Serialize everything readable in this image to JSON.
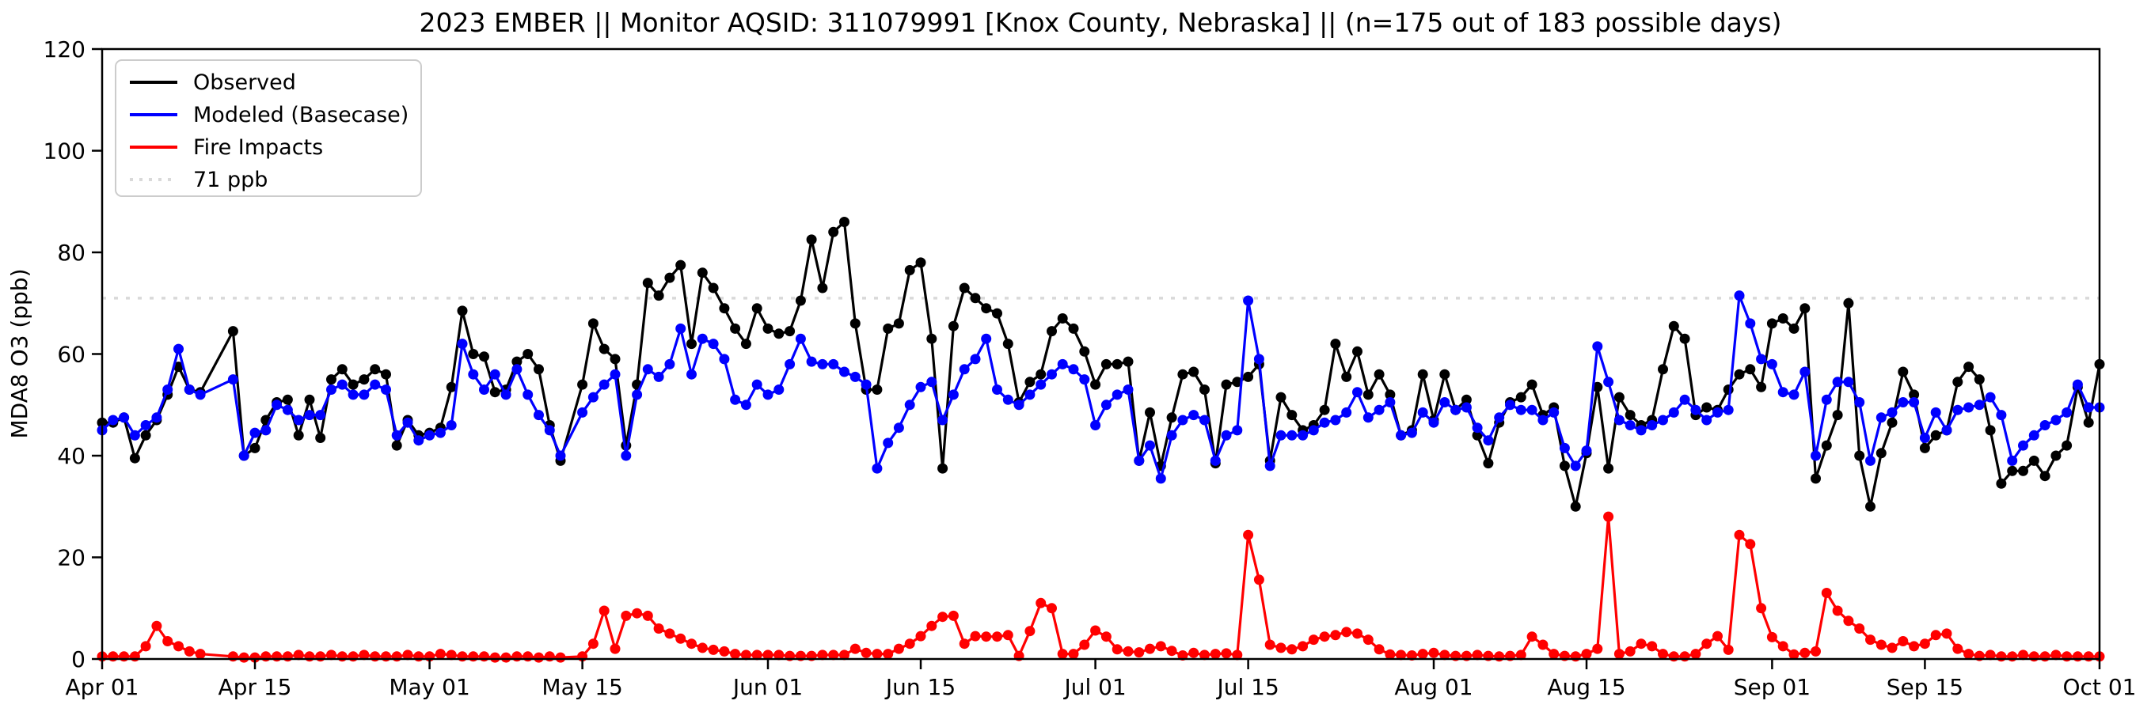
{
  "title": "2023 EMBER || Monitor AQSID: 311079991 [Knox County, Nebraska] || (n=175 out of 183 possible days)",
  "y_axis": {
    "label": "MDA8 O3 (ppb)",
    "ticks": [
      0,
      20,
      40,
      60,
      80,
      100,
      120
    ],
    "min": 0,
    "max": 120
  },
  "x_axis": {
    "ticks": [
      {
        "label": "Apr 01",
        "day": 0
      },
      {
        "label": "Apr 15",
        "day": 14
      },
      {
        "label": "May 01",
        "day": 30
      },
      {
        "label": "May 15",
        "day": 44
      },
      {
        "label": "Jun 01",
        "day": 61
      },
      {
        "label": "Jun 15",
        "day": 75
      },
      {
        "label": "Jul 01",
        "day": 91
      },
      {
        "label": "Jul 15",
        "day": 105
      },
      {
        "label": "Aug 01",
        "day": 122
      },
      {
        "label": "Aug 15",
        "day": 136
      },
      {
        "label": "Sep 01",
        "day": 153
      },
      {
        "label": "Sep 15",
        "day": 167
      },
      {
        "label": "Oct 01",
        "day": 183
      }
    ]
  },
  "legend": [
    {
      "label": "Observed",
      "color": "#000000",
      "dashed": false
    },
    {
      "label": "Modeled (Basecase)",
      "color": "#0000ff",
      "dashed": false
    },
    {
      "label": "Fire Impacts",
      "color": "#ff0000",
      "dashed": false
    },
    {
      "label": "71 ppb",
      "color": "#d9d9d9",
      "dashed": true
    }
  ],
  "threshold": {
    "value": 71,
    "label": "71 ppb",
    "color": "#d9d9d9"
  },
  "chart_data": {
    "type": "line",
    "x_start_date": "Apr 01",
    "x_end_date": "Oct 01",
    "n_days": 184,
    "ylim": [
      0,
      120
    ],
    "grid": false,
    "legend_position": "upper left",
    "series": [
      {
        "name": "Observed",
        "color": "#000000",
        "values": [
          46.5,
          46.5,
          47.5,
          39.5,
          44,
          47,
          52,
          57.5,
          53,
          52.5,
          null,
          null,
          64.5,
          40,
          41.5,
          47,
          50.5,
          51,
          44,
          51,
          43.5,
          55,
          57,
          54,
          55,
          57,
          56,
          42,
          47,
          44,
          44.5,
          45.5,
          53.5,
          68.5,
          60,
          59.5,
          52.5,
          53,
          58.5,
          60,
          57,
          46,
          39,
          null,
          54,
          66,
          61,
          59,
          42,
          54,
          74,
          71.5,
          75,
          77.5,
          62,
          76,
          73,
          69,
          65,
          62,
          69,
          65,
          64,
          64.5,
          70.5,
          82.5,
          73,
          84,
          86,
          66,
          53,
          53,
          65,
          66,
          76.5,
          78,
          63,
          37.5,
          65.5,
          73,
          71,
          69,
          68,
          62,
          50.5,
          54.5,
          56,
          64.5,
          67,
          65,
          60.5,
          54,
          58,
          58,
          58.5,
          39,
          48.5,
          38,
          47.5,
          56,
          56.5,
          53,
          38.5,
          54,
          54.5,
          55.5,
          58,
          39,
          51.5,
          48,
          45,
          46,
          49,
          62,
          55.5,
          60.5,
          52,
          56,
          52,
          44,
          45,
          56,
          47,
          56,
          49,
          51,
          44,
          38.5,
          46.5,
          50.5,
          51.5,
          54,
          48,
          49.5,
          38,
          30,
          40.5,
          53.5,
          37.5,
          51.5,
          48,
          46,
          47,
          57,
          65.5,
          63,
          48,
          49.5,
          49,
          53,
          56,
          57,
          53.5,
          66,
          67,
          65,
          69,
          35.5,
          42,
          48,
          70,
          40,
          30,
          40.5,
          46.5,
          56.5,
          52,
          41.5,
          44,
          45,
          54.5,
          57.5,
          55,
          45,
          34.5,
          37,
          37,
          39,
          36,
          40,
          42,
          53.5,
          46.5,
          58
        ]
      },
      {
        "name": "Modeled (Basecase)",
        "color": "#0000ff",
        "values": [
          45,
          47,
          47.5,
          44,
          46,
          47.5,
          53,
          61,
          53,
          52,
          null,
          null,
          55,
          40,
          44.5,
          45,
          50,
          49,
          47,
          48,
          48,
          53,
          54,
          52,
          52,
          54,
          53,
          44,
          46.5,
          43,
          44,
          44.5,
          46,
          62,
          56,
          53,
          56,
          52,
          57,
          52,
          48,
          45,
          40,
          null,
          48.5,
          51.5,
          54,
          56,
          40,
          52,
          57,
          55.5,
          58,
          65,
          56,
          63,
          62,
          59,
          51,
          50,
          54,
          52,
          53,
          58,
          63,
          58.5,
          58,
          58,
          56.5,
          55.5,
          54,
          37.5,
          42.5,
          45.5,
          50,
          53.5,
          54.5,
          47,
          52,
          57,
          59,
          63,
          53,
          51,
          50,
          52,
          54,
          56,
          58,
          57,
          55,
          46,
          50,
          52,
          53,
          39,
          42,
          35.5,
          44,
          47,
          48,
          47,
          39,
          44,
          45,
          70.5,
          59,
          38,
          44,
          44,
          44,
          45,
          46.5,
          47,
          48.5,
          52.5,
          47.5,
          49,
          50.5,
          44,
          44.5,
          48.5,
          46.5,
          50.5,
          49,
          49.5,
          45.5,
          43,
          47.5,
          50,
          49,
          49,
          47,
          48.5,
          41.5,
          38,
          41,
          61.5,
          54.5,
          47,
          46,
          45,
          46,
          47,
          48.5,
          51,
          49,
          47,
          48.5,
          49,
          71.5,
          66,
          59,
          58,
          52.5,
          52,
          56.5,
          40,
          51,
          54.5,
          54.5,
          50.5,
          39,
          47.5,
          48.5,
          50.5,
          50.5,
          43.5,
          48.5,
          45,
          49,
          49.5,
          50,
          51.5,
          48,
          39,
          42,
          44,
          46,
          47,
          48.5,
          54,
          49.5,
          49.5
        ]
      },
      {
        "name": "Fire Impacts",
        "color": "#ff0000",
        "values": [
          0.5,
          0.5,
          0.5,
          0.5,
          2.5,
          6.5,
          3.5,
          2.5,
          1.5,
          1,
          null,
          null,
          0.5,
          0.3,
          0.3,
          0.5,
          0.5,
          0.5,
          0.8,
          0.5,
          0.5,
          0.8,
          0.5,
          0.5,
          0.8,
          0.5,
          0.5,
          0.5,
          0.8,
          0.5,
          0.5,
          1,
          0.8,
          0.5,
          0.5,
          0.5,
          0.3,
          0.3,
          0.5,
          0.5,
          0.3,
          0.5,
          0.3,
          null,
          0.5,
          3,
          9.5,
          2,
          8.5,
          9,
          8.5,
          6,
          5,
          4,
          3,
          2.2,
          1.8,
          1.5,
          1,
          0.8,
          0.8,
          0.8,
          0.8,
          0.6,
          0.6,
          0.6,
          0.8,
          0.8,
          0.8,
          2,
          1.2,
          1,
          1,
          2,
          3,
          4.5,
          6.5,
          8.3,
          8.5,
          3,
          4.5,
          4.4,
          4.4,
          4.7,
          0.6,
          5.5,
          11,
          10,
          1,
          1,
          2.8,
          5.6,
          4.4,
          1.9,
          1.5,
          1.3,
          2,
          2.5,
          1.6,
          0.7,
          1.2,
          0.8,
          1,
          1.1,
          0.8,
          24.4,
          15.6,
          2.8,
          2.2,
          1.9,
          2.5,
          3.8,
          4.4,
          4.7,
          5.3,
          5,
          3.8,
          1.9,
          0.9,
          0.8,
          0.7,
          1,
          1.2,
          0.8,
          0.6,
          0.6,
          0.8,
          0.6,
          0.5,
          0.6,
          0.8,
          4.4,
          2.8,
          1,
          0.6,
          0.5,
          1,
          2,
          28,
          1,
          1.5,
          3,
          2.5,
          1,
          0.5,
          0.5,
          1,
          3,
          4.5,
          1.8,
          24.4,
          22.6,
          10,
          4.3,
          2.5,
          0.9,
          1.2,
          1.5,
          13,
          9.5,
          7.5,
          6,
          3.8,
          2.8,
          2.2,
          3.5,
          2.5,
          3,
          4.7,
          5,
          2,
          1,
          0.6,
          0.8,
          0.5,
          0.5,
          0.8,
          0.5,
          0.5,
          0.8,
          0.5,
          0.5,
          0.5,
          0.5
        ]
      }
    ]
  }
}
